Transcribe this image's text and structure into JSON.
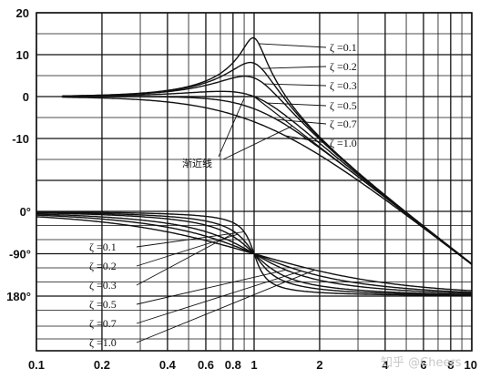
{
  "chart_data": {
    "type": "line",
    "title": "",
    "xlabel": "",
    "ylabel": "",
    "x_scale": "log",
    "xlim": [
      0.1,
      10
    ],
    "x_ticks": [
      {
        "v": 0.1,
        "label": "0.1"
      },
      {
        "v": 0.2,
        "label": "0.2"
      },
      {
        "v": 0.4,
        "label": "0.4"
      },
      {
        "v": 0.6,
        "label": "0.6"
      },
      {
        "v": 0.8,
        "label": "0.8"
      },
      {
        "v": 1,
        "label": "1"
      },
      {
        "v": 2,
        "label": "2"
      },
      {
        "v": 4,
        "label": "4"
      },
      {
        "v": 6,
        "label": "6"
      },
      {
        "v": 8,
        "label": "8"
      },
      {
        "v": 10,
        "label": "10"
      }
    ],
    "x_gridlines": [
      0.1,
      0.2,
      0.4,
      0.6,
      0.8,
      1,
      2,
      4,
      6,
      8,
      10
    ],
    "magnitude_panel": {
      "ylim": [
        -20,
        20
      ],
      "y_ticks": [
        {
          "v": 20,
          "label": "20"
        },
        {
          "v": 10,
          "label": "10"
        },
        {
          "v": 0,
          "label": "0"
        },
        {
          "v": -10,
          "label": "-10"
        }
      ],
      "series": [
        {
          "name": "ζ=0.1",
          "kind": "magnitude",
          "zeta": 0.1
        },
        {
          "name": "ζ=0.2",
          "kind": "magnitude",
          "zeta": 0.2
        },
        {
          "name": "ζ=0.3",
          "kind": "magnitude",
          "zeta": 0.3
        },
        {
          "name": "ζ=0.5",
          "kind": "magnitude",
          "zeta": 0.5
        },
        {
          "name": "ζ=0.7",
          "kind": "magnitude",
          "zeta": 0.7
        },
        {
          "name": "ζ=1.0",
          "kind": "magnitude",
          "zeta": 1.0
        },
        {
          "name": "渐近线",
          "kind": "asymptote"
        }
      ]
    },
    "phase_panel": {
      "ylim": [
        -200,
        10
      ],
      "y_ticks": [
        {
          "v": 0,
          "label": "0°"
        },
        {
          "v": -90,
          "label": "-90°"
        },
        {
          "v": -180,
          "label": "180°"
        }
      ],
      "series": [
        {
          "name": "ζ=0.1",
          "kind": "phase",
          "zeta": 0.1
        },
        {
          "name": "ζ=0.2",
          "kind": "phase",
          "zeta": 0.2
        },
        {
          "name": "ζ=0.3",
          "kind": "phase",
          "zeta": 0.3
        },
        {
          "name": "ζ=0.5",
          "kind": "phase",
          "zeta": 0.5
        },
        {
          "name": "ζ=0.7",
          "kind": "phase",
          "zeta": 0.7
        },
        {
          "name": "ζ=1.0",
          "kind": "phase",
          "zeta": 1.0
        }
      ]
    },
    "annotations": {
      "magnitude_labels": [
        {
          "text": "ζ =0.1",
          "zeta": 0.1
        },
        {
          "text": "ζ =0.2",
          "zeta": 0.2
        },
        {
          "text": "ζ =0.3",
          "zeta": 0.3
        },
        {
          "text": "ζ =0.5",
          "zeta": 0.5
        },
        {
          "text": "ζ =0.7",
          "zeta": 0.7
        },
        {
          "text": "ζ =1.0",
          "zeta": 1.0
        }
      ],
      "phase_labels": [
        {
          "text": "ζ =0.1",
          "zeta": 0.1
        },
        {
          "text": "ζ =0.2",
          "zeta": 0.2
        },
        {
          "text": "ζ =0.3",
          "zeta": 0.3
        },
        {
          "text": "ζ =0.5",
          "zeta": 0.5
        },
        {
          "text": "ζ =0.7",
          "zeta": 0.7
        },
        {
          "text": "ζ =1.0",
          "zeta": 1.0
        }
      ],
      "asymptote_label": "渐近线"
    },
    "watermark": "知乎 @Cheers",
    "grid": true
  }
}
